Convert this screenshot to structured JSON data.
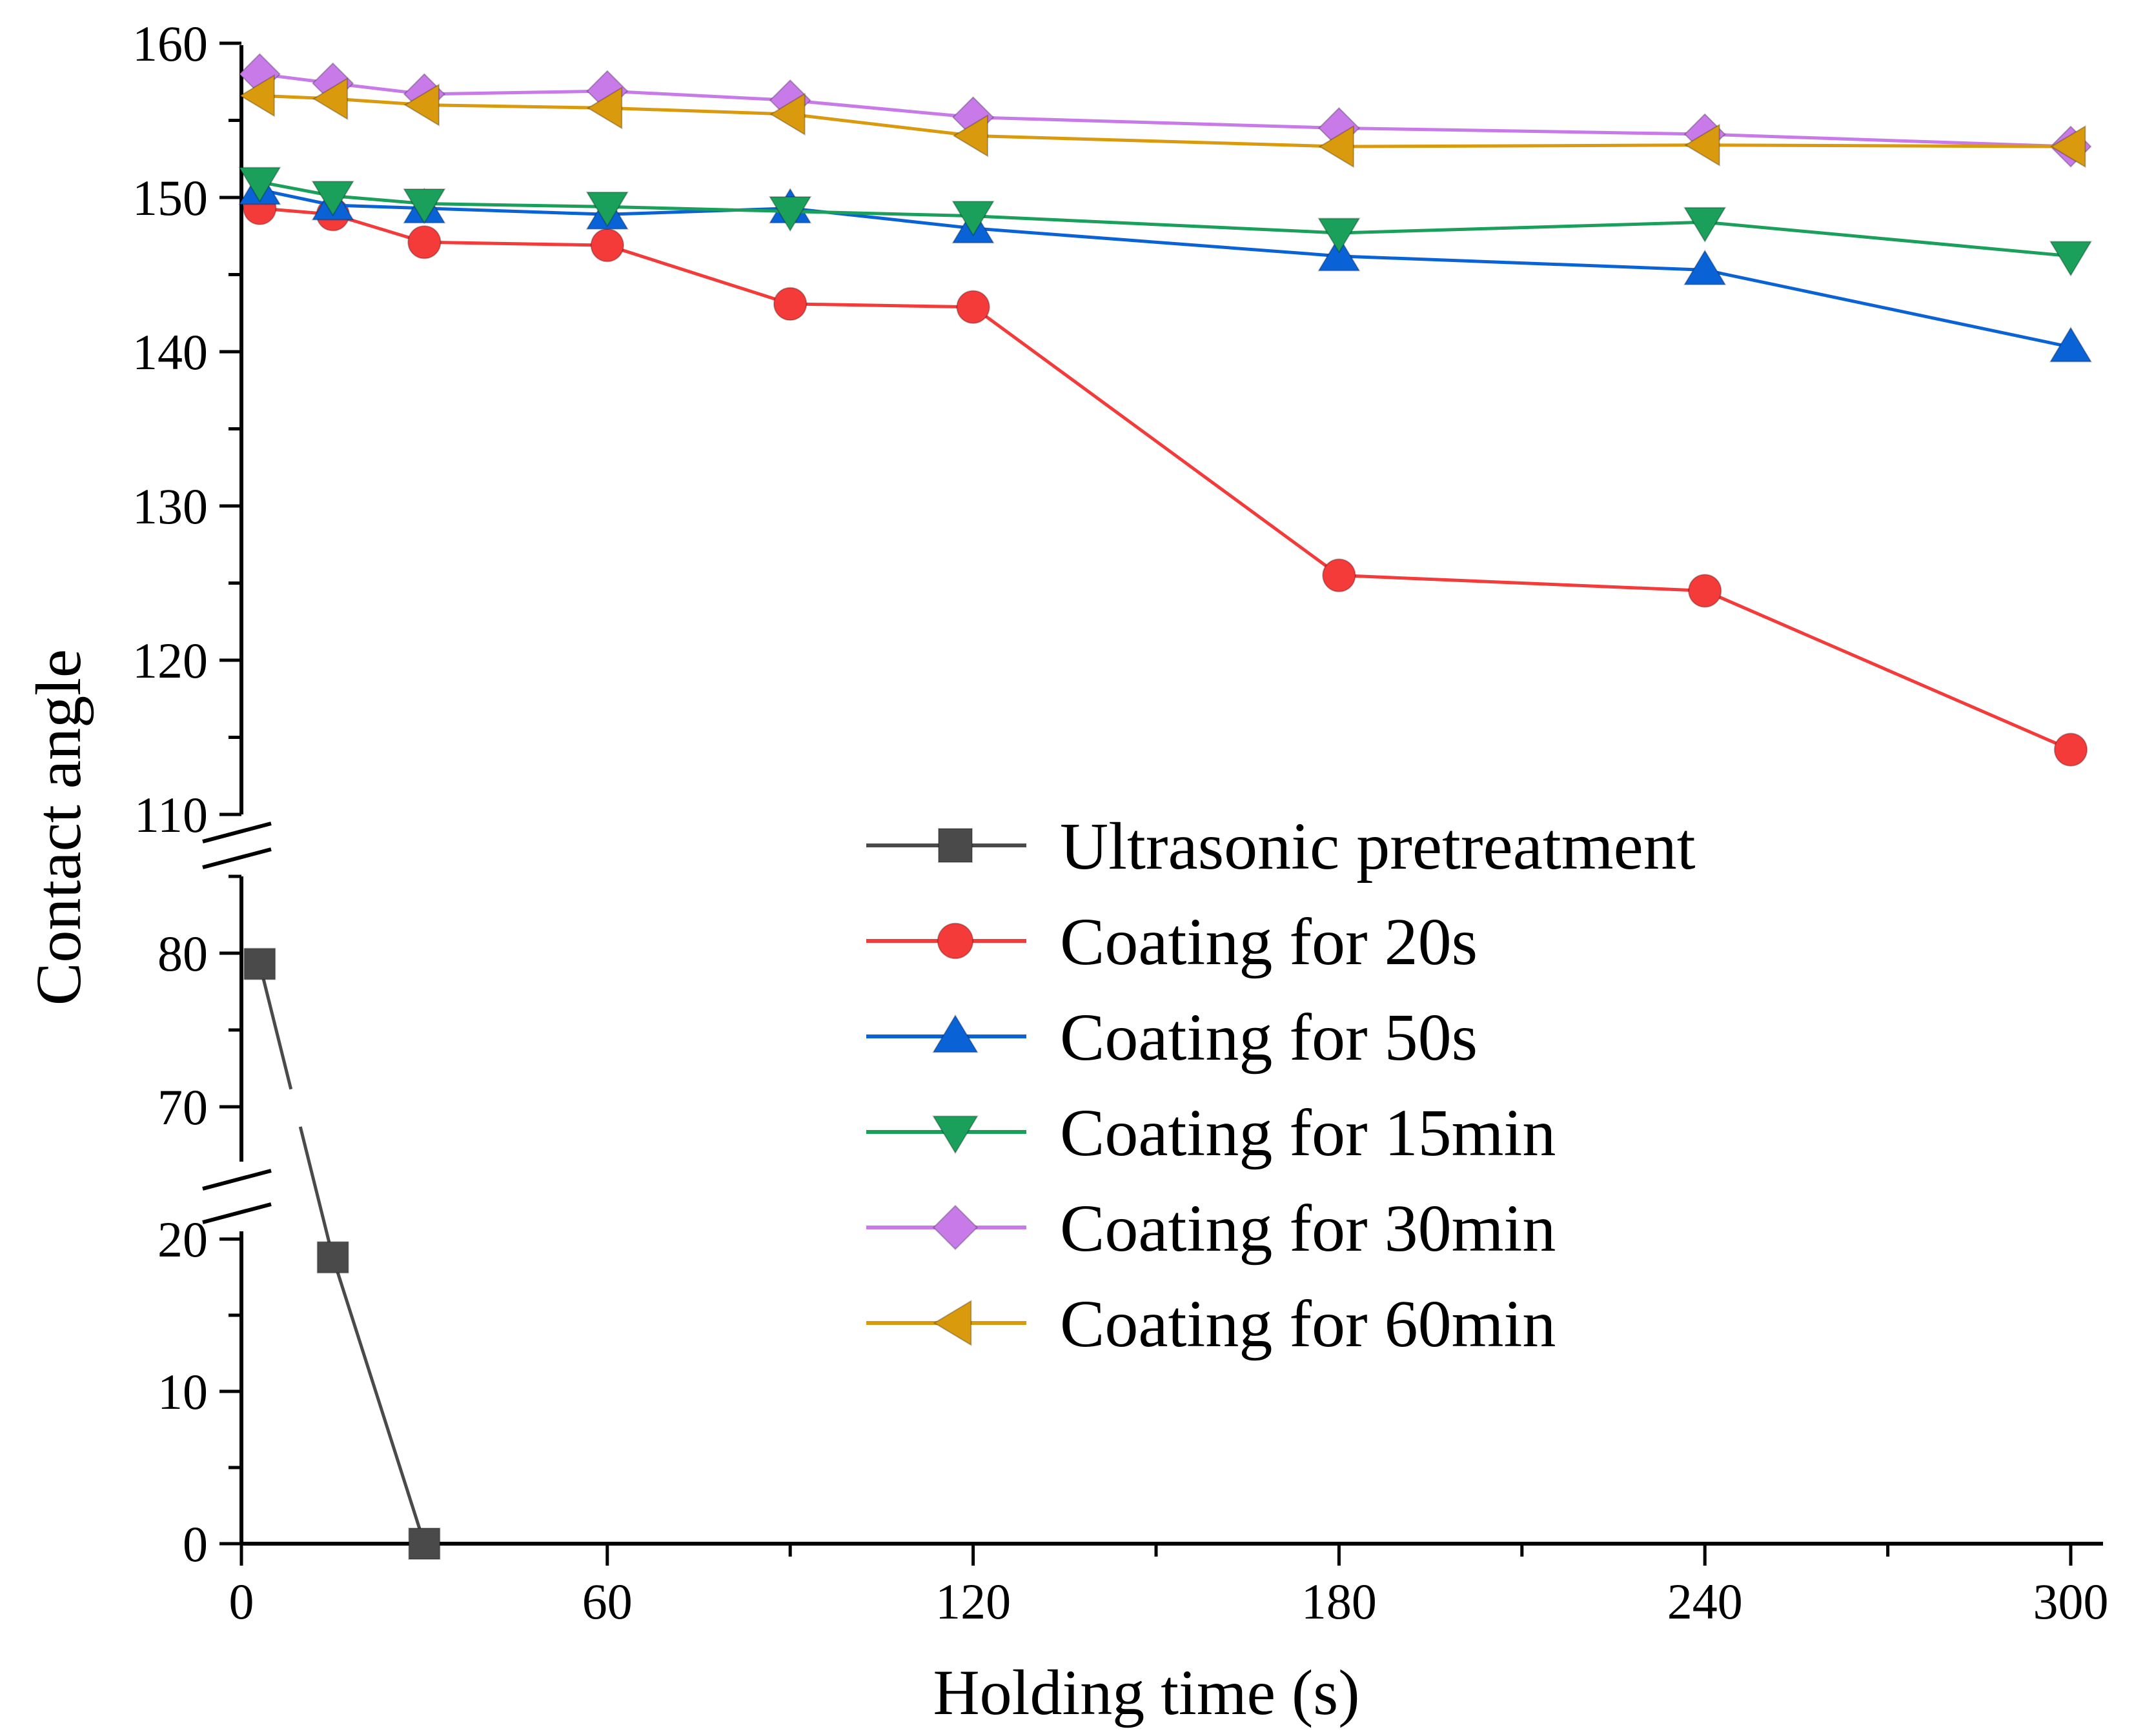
{
  "chart_data": {
    "type": "line",
    "title": "",
    "xlabel": "Holding time (s)",
    "ylabel": "Contact angle",
    "xlim": [
      0,
      306
    ],
    "x_ticks": [
      0,
      60,
      120,
      180,
      240,
      300
    ],
    "x_tick_labels": [
      "0",
      "60",
      "120",
      "180",
      "240",
      "300"
    ],
    "y_axis_segments": [
      {
        "range": [
          0,
          24
        ],
        "ticks": [
          0,
          10,
          20
        ],
        "tick_labels": [
          "0",
          "10",
          "20"
        ]
      },
      {
        "range": [
          65,
          86
        ],
        "ticks": [
          70,
          80
        ],
        "tick_labels": [
          "70",
          "80"
        ]
      },
      {
        "range": [
          110,
          160
        ],
        "ticks": [
          110,
          120,
          130,
          140,
          150,
          160
        ],
        "tick_labels": [
          "110",
          "120",
          "130",
          "140",
          "150",
          "160"
        ]
      }
    ],
    "axis_breaks": [
      "24-65",
      "86-110"
    ],
    "grid": false,
    "legend_position": "bottom-right",
    "series": [
      {
        "name": "Ultrasonic pretreatment",
        "color": "#4a4a4a",
        "marker": "square",
        "x": [
          3,
          15,
          30
        ],
        "y": [
          79.3,
          18.8,
          0
        ]
      },
      {
        "name": "Coating for 20s",
        "color": "#f53a3a",
        "marker": "circle",
        "x": [
          3,
          15,
          30,
          60,
          90,
          120,
          180,
          240,
          300
        ],
        "y": [
          149.3,
          148.9,
          147.1,
          146.9,
          143.1,
          142.9,
          125.5,
          124.5,
          114.2
        ]
      },
      {
        "name": "Coating for 50s",
        "color": "#0a63d6",
        "marker": "triangle-up",
        "x": [
          3,
          15,
          30,
          60,
          90,
          120,
          180,
          240,
          300
        ],
        "y": [
          150.5,
          149.5,
          149.3,
          148.9,
          149.3,
          148.0,
          146.2,
          145.3,
          140.3
        ]
      },
      {
        "name": "Coating for 15min",
        "color": "#1aa05a",
        "marker": "triangle-down",
        "x": [
          3,
          15,
          30,
          60,
          90,
          120,
          180,
          240,
          300
        ],
        "y": [
          151.0,
          150.1,
          149.6,
          149.4,
          149.1,
          148.8,
          147.7,
          148.4,
          146.2
        ]
      },
      {
        "name": "Coating for 30min",
        "color": "#c77ae8",
        "marker": "diamond",
        "x": [
          3,
          15,
          30,
          60,
          90,
          120,
          180,
          240,
          300
        ],
        "y": [
          158.0,
          157.4,
          156.7,
          156.9,
          156.3,
          155.2,
          154.5,
          154.1,
          153.3
        ]
      },
      {
        "name": "Coating for 60min",
        "color": "#d99a0e",
        "marker": "triangle-left",
        "x": [
          3,
          15,
          30,
          60,
          90,
          120,
          180,
          240,
          300
        ],
        "y": [
          156.6,
          156.4,
          156.0,
          155.8,
          155.4,
          154.0,
          153.3,
          153.4,
          153.3
        ]
      }
    ]
  }
}
